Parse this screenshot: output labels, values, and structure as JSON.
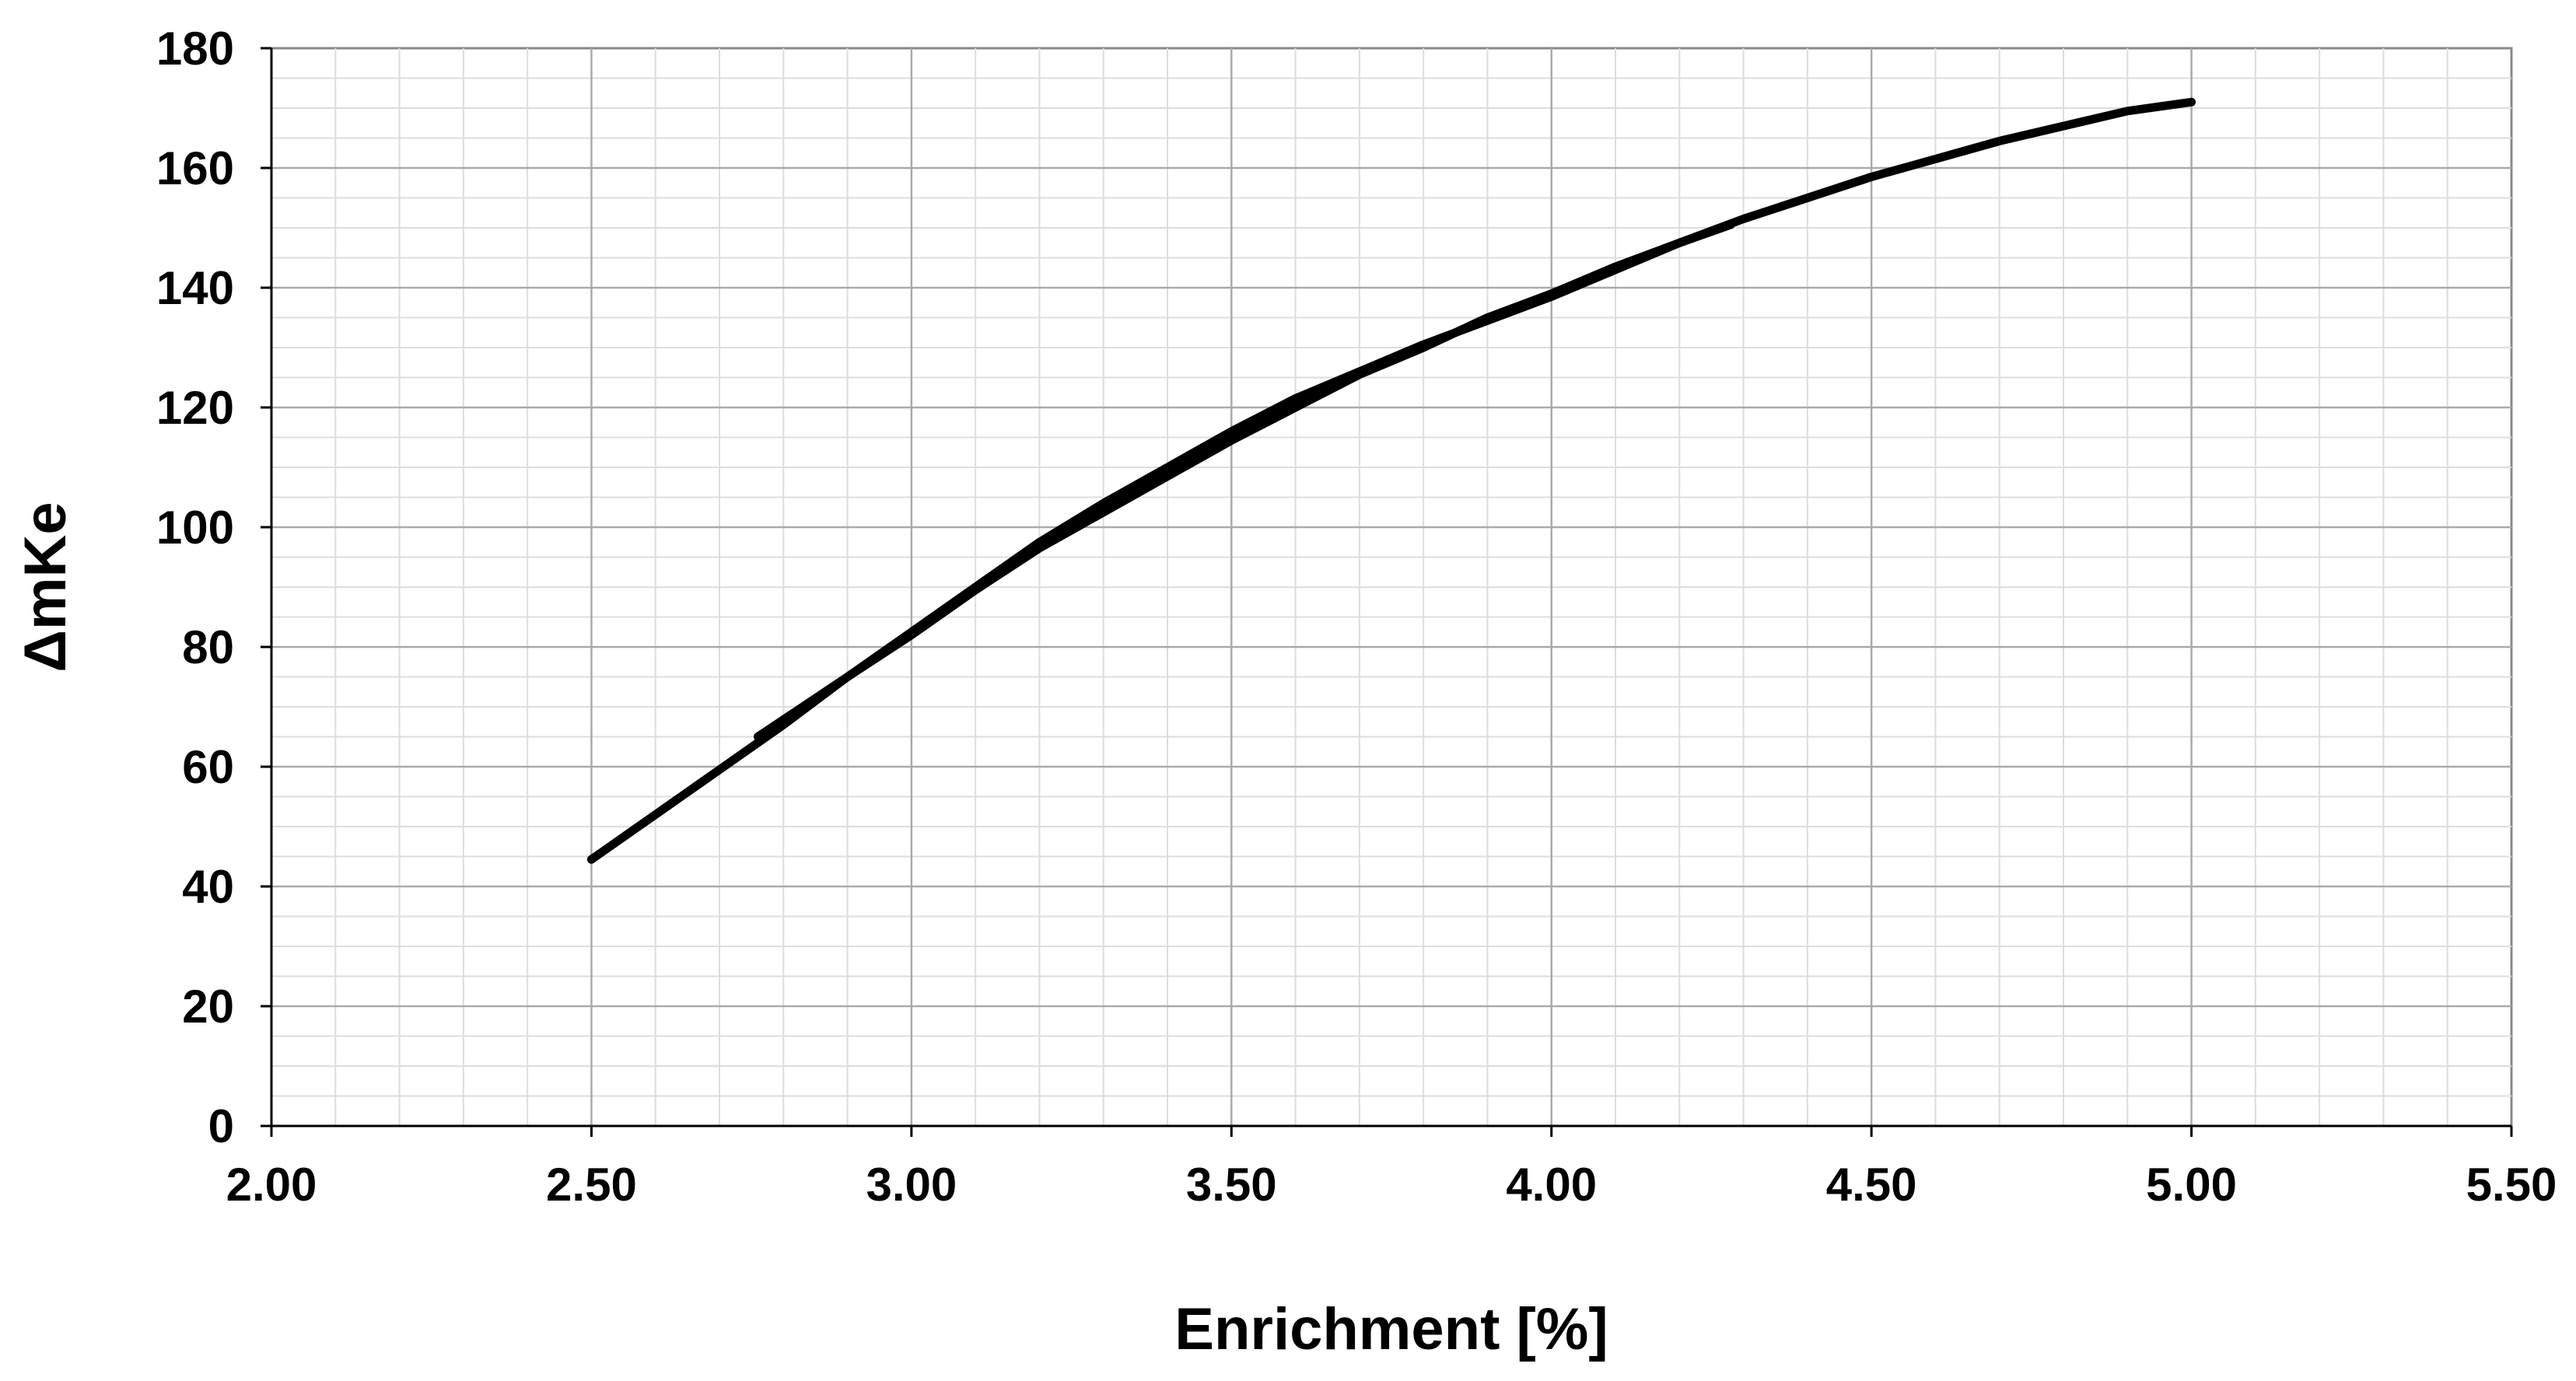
{
  "chart_data": {
    "type": "line",
    "title": "",
    "xlabel": "Enrichment [%]",
    "ylabel": "ΔmKe",
    "xlim": [
      2.0,
      5.5
    ],
    "ylim": [
      0,
      180
    ],
    "x_ticks": [
      "2.00",
      "2.50",
      "3.00",
      "3.50",
      "4.00",
      "4.50",
      "5.00",
      "5.50"
    ],
    "y_ticks": [
      "0",
      "20",
      "40",
      "60",
      "80",
      "100",
      "120",
      "140",
      "160",
      "180"
    ],
    "grid": true,
    "legend": "none",
    "line_color": "#000000",
    "series": [
      {
        "x": [
          2.5,
          2.6,
          2.7,
          2.8,
          2.9,
          3.0,
          3.1,
          3.2,
          3.3,
          3.4,
          3.5,
          3.6,
          3.7,
          3.8,
          3.9,
          4.0,
          4.1,
          4.2,
          4.3,
          4.4,
          4.5,
          4.6,
          4.7,
          4.8,
          4.9,
          5.0
        ],
        "y": [
          44.5,
          52,
          59.5,
          67,
          75,
          82.5,
          90,
          97.5,
          104,
          110,
          116,
          121.5,
          126,
          130.5,
          134.5,
          138.5,
          143,
          147.5,
          151.5,
          155,
          158.5,
          161.5,
          164.5,
          167,
          169.5,
          171
        ]
      },
      {
        "x": [
          2.76,
          2.9,
          3.0,
          3.1,
          3.2,
          3.3,
          3.4,
          3.5,
          3.6,
          3.7,
          3.8,
          3.9,
          4.0,
          4.1,
          4.2,
          4.28
        ],
        "y": [
          65,
          75,
          82,
          89.5,
          96.5,
          102.5,
          108.5,
          114.5,
          120,
          125.5,
          130,
          135,
          139,
          143.5,
          147.5,
          150.5
        ]
      }
    ]
  }
}
